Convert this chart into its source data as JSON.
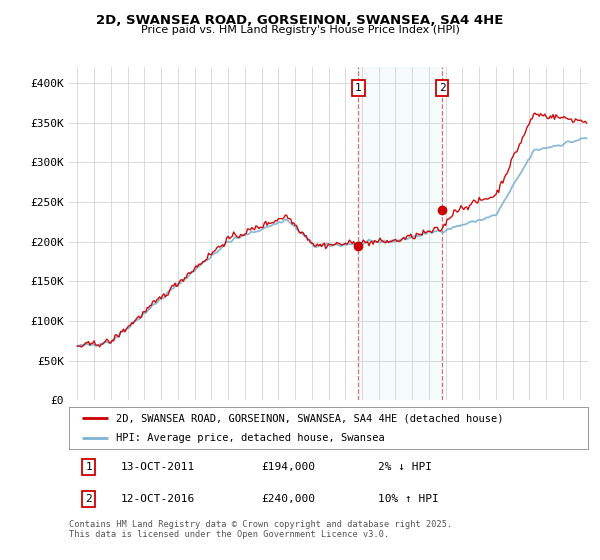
{
  "title": "2D, SWANSEA ROAD, GORSEINON, SWANSEA, SA4 4HE",
  "subtitle": "Price paid vs. HM Land Registry's House Price Index (HPI)",
  "ylim": [
    0,
    420000
  ],
  "yticks": [
    0,
    50000,
    100000,
    150000,
    200000,
    250000,
    300000,
    350000,
    400000
  ],
  "ytick_labels": [
    "£0",
    "£50K",
    "£100K",
    "£150K",
    "£200K",
    "£250K",
    "£300K",
    "£350K",
    "£400K"
  ],
  "background_color": "#ffffff",
  "grid_color": "#cccccc",
  "price_paid_color": "#cc0000",
  "hpi_color": "#7fb3d3",
  "marker1_x": 2011.79,
  "marker1_y": 194000,
  "marker2_x": 2016.79,
  "marker2_y": 240000,
  "legend_line1": "2D, SWANSEA ROAD, GORSEINON, SWANSEA, SA4 4HE (detached house)",
  "legend_line2": "HPI: Average price, detached house, Swansea",
  "footer": "Contains HM Land Registry data © Crown copyright and database right 2025.\nThis data is licensed under the Open Government Licence v3.0.",
  "xmin": 1994.5,
  "xmax": 2025.5
}
